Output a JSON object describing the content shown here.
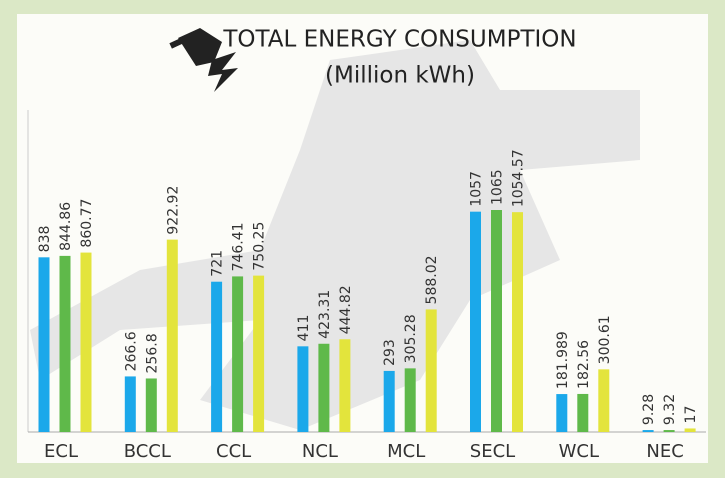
{
  "chart_data": {
    "type": "bar",
    "title": "TOTAL ENERGY CONSUMPTION",
    "subtitle": "(Million kWh)",
    "categories": [
      "ECL",
      "BCCL",
      "CCL",
      "NCL",
      "MCL",
      "SECL",
      "WCL",
      "NEC"
    ],
    "series": [
      {
        "color": "#1ba8ea",
        "values": [
          838,
          266.6,
          721,
          411,
          293,
          1057,
          181.989,
          9.28
        ]
      },
      {
        "color": "#5fb94a",
        "values": [
          844.86,
          256.8,
          746.41,
          423.31,
          305.28,
          1065,
          182.56,
          9.32
        ]
      },
      {
        "color": "#e3e43c",
        "values": [
          860.77,
          922.92,
          750.25,
          444.82,
          588.02,
          1054.57,
          300.61,
          17
        ]
      }
    ]
  }
}
